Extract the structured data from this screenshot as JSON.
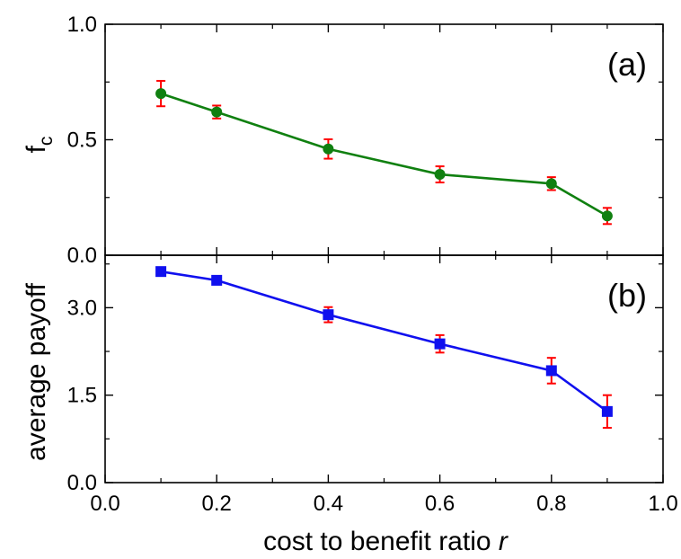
{
  "chart_data": [
    {
      "type": "line",
      "panel_label": "(a)",
      "ylabel": "f",
      "ylabel_subscript": "c",
      "xlim": [
        0.0,
        1.0
      ],
      "ylim": [
        0.0,
        1.0
      ],
      "yticks": [
        0.0,
        0.5,
        1.0
      ],
      "ytick_labels": [
        "0.0",
        "0.5",
        "1.0"
      ],
      "grid": false,
      "series": [
        {
          "color": "#108010",
          "error_color": "#ff0000",
          "marker": "circle",
          "x": [
            0.1,
            0.2,
            0.4,
            0.6,
            0.8,
            0.9
          ],
          "y": [
            0.7,
            0.62,
            0.46,
            0.35,
            0.31,
            0.17
          ],
          "err": [
            0.055,
            0.028,
            0.042,
            0.035,
            0.028,
            0.035
          ]
        }
      ]
    },
    {
      "type": "line",
      "panel_label": "(b)",
      "ylabel": "average payoff",
      "xlabel": "cost to benefit ratio",
      "xlabel_italic": "r",
      "xlim": [
        0.0,
        1.0
      ],
      "ylim": [
        0.0,
        3.9
      ],
      "xticks": [
        0.0,
        0.2,
        0.4,
        0.6,
        0.8,
        1.0
      ],
      "xtick_labels": [
        "0.0",
        "0.2",
        "0.4",
        "0.6",
        "0.8",
        "1.0"
      ],
      "yticks": [
        0.0,
        1.5,
        3.0
      ],
      "ytick_labels": [
        "0.0",
        "1.5",
        "3.0"
      ],
      "grid": false,
      "series": [
        {
          "color": "#1010ee",
          "error_color": "#ff0000",
          "marker": "square",
          "x": [
            0.1,
            0.2,
            0.4,
            0.6,
            0.8,
            0.9
          ],
          "y": [
            3.62,
            3.47,
            2.88,
            2.38,
            1.92,
            1.22
          ],
          "err": [
            0.07,
            0.07,
            0.13,
            0.15,
            0.22,
            0.28
          ]
        }
      ]
    }
  ]
}
